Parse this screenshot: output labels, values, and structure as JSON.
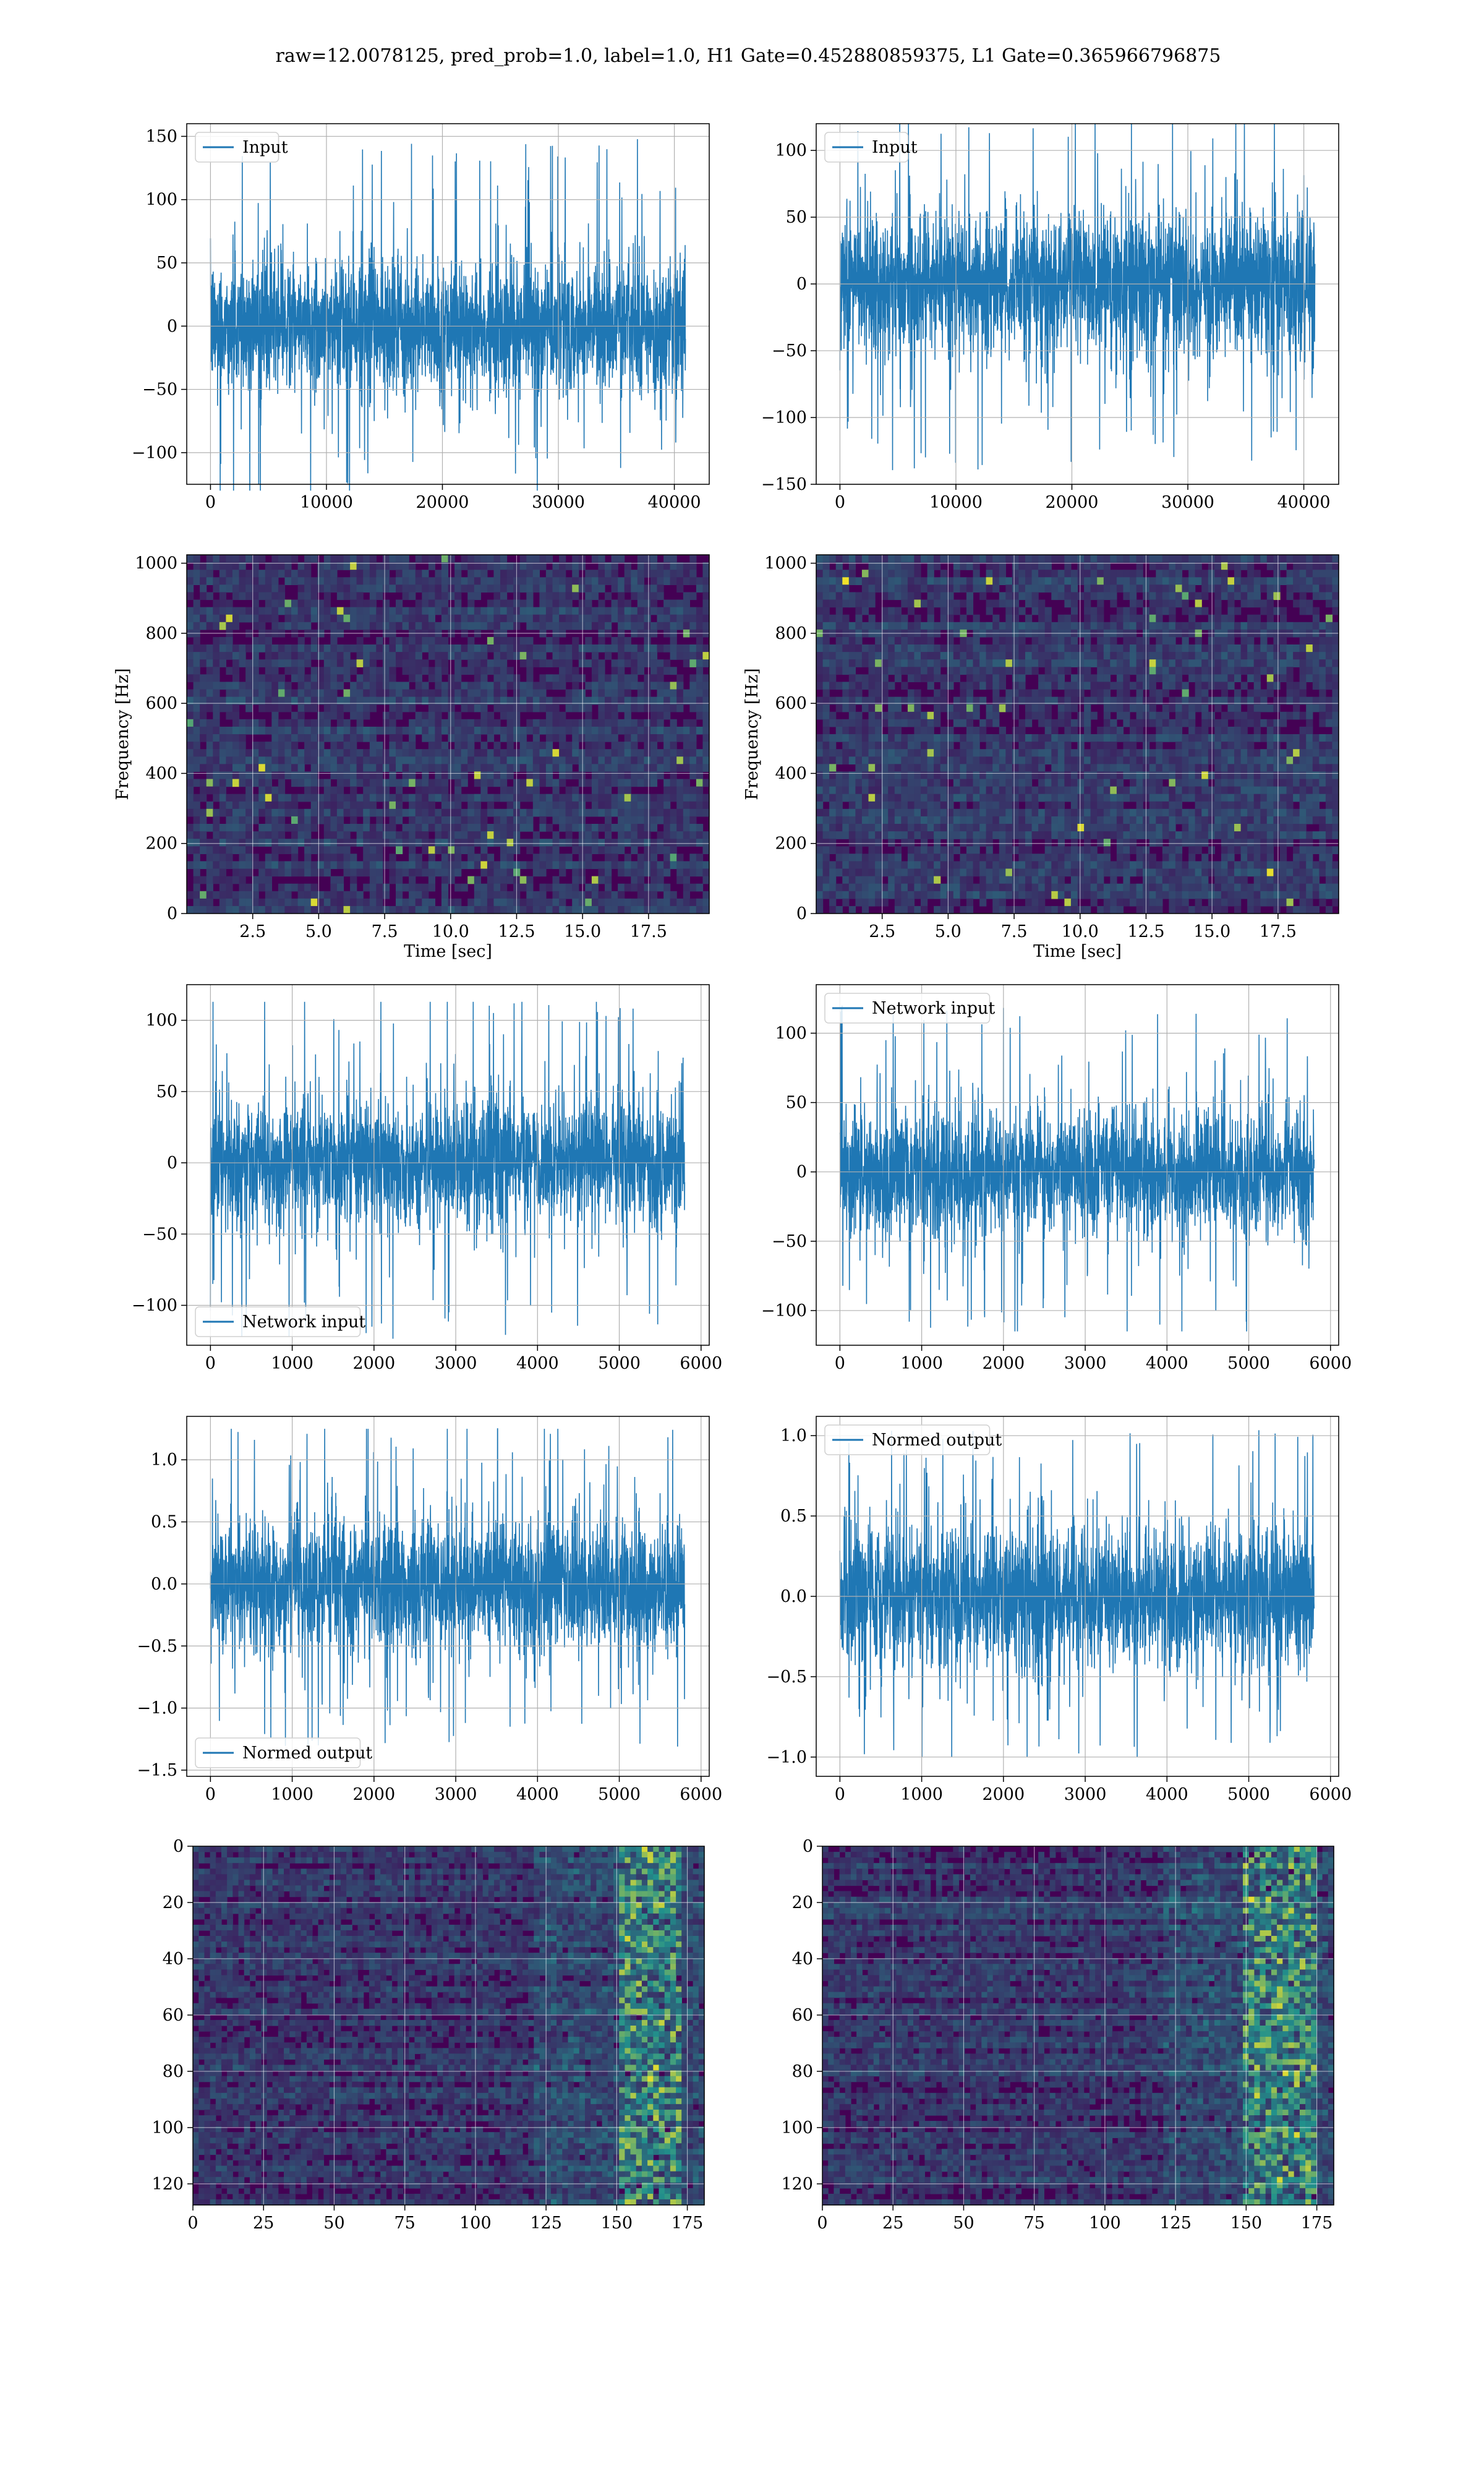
{
  "suptitle": "raw=12.0078125, pred_prob=1.0, label=1.0, H1 Gate=0.452880859375, L1 Gate=0.365966796875",
  "colors": {
    "series": "#1f77b4",
    "grid": "#b0b0b0",
    "spec_low": "#440154",
    "spec_mid": "#21918c",
    "spec_high": "#fde725"
  },
  "chart_data": [
    {
      "id": "p0",
      "type": "line",
      "series": [
        {
          "name": "Input"
        }
      ],
      "legend": "upper-left",
      "xlim": [
        -2048,
        43008
      ],
      "ylim": [
        -125,
        160
      ],
      "xticks": [
        "0",
        "10000",
        "20000",
        "30000",
        "40000"
      ],
      "xtick_values": [
        0,
        10000,
        20000,
        30000,
        40000
      ],
      "yticks": [
        "150",
        "100",
        "50",
        "0",
        "−50",
        "−100"
      ],
      "ytick_values": [
        150,
        100,
        50,
        0,
        -50,
        -100
      ],
      "x_range": [
        0,
        40960
      ],
      "band": [
        -55,
        50
      ],
      "extreme": [
        -130,
        148
      ],
      "grid": true
    },
    {
      "id": "p1",
      "type": "line",
      "series": [
        {
          "name": "Input"
        }
      ],
      "legend": "upper-left",
      "xlim": [
        -2048,
        43008
      ],
      "ylim": [
        -150,
        120
      ],
      "xticks": [
        "0",
        "10000",
        "20000",
        "30000",
        "40000"
      ],
      "xtick_values": [
        0,
        10000,
        20000,
        30000,
        40000
      ],
      "yticks": [
        "100",
        "50",
        "0",
        "−50",
        "−100",
        "−150"
      ],
      "ytick_values": [
        100,
        50,
        0,
        -50,
        -100,
        -150
      ],
      "x_range": [
        0,
        40960
      ],
      "band": [
        -55,
        55
      ],
      "extreme": [
        -140,
        120
      ],
      "grid": true
    },
    {
      "id": "p2",
      "type": "heatmap",
      "xlabel": "Time [sec]",
      "ylabel": "Frequency [Hz]",
      "xlim": [
        0,
        19.8
      ],
      "ylim": [
        0,
        1024
      ],
      "xticks": [
        "2.5",
        "5.0",
        "7.5",
        "10.0",
        "12.5",
        "15.0",
        "17.5"
      ],
      "xtick_values": [
        2.5,
        5,
        7.5,
        10,
        12.5,
        15,
        17.5
      ],
      "yticks": [
        "0",
        "200",
        "400",
        "600",
        "800",
        "1000"
      ],
      "ytick_values": [
        0,
        200,
        400,
        600,
        800,
        1000
      ],
      "grid": true
    },
    {
      "id": "p3",
      "type": "heatmap",
      "xlabel": "Time [sec]",
      "ylabel": "Frequency [Hz]",
      "xlim": [
        0,
        19.8
      ],
      "ylim": [
        0,
        1024
      ],
      "xticks": [
        "2.5",
        "5.0",
        "7.5",
        "10.0",
        "12.5",
        "15.0",
        "17.5"
      ],
      "xtick_values": [
        2.5,
        5,
        7.5,
        10,
        12.5,
        15,
        17.5
      ],
      "yticks": [
        "0",
        "200",
        "400",
        "600",
        "800",
        "1000"
      ],
      "ytick_values": [
        0,
        200,
        400,
        600,
        800,
        1000
      ],
      "grid": true
    },
    {
      "id": "p4",
      "type": "line",
      "series": [
        {
          "name": "Network input"
        }
      ],
      "legend": "lower-left",
      "xlim": [
        -290,
        6100
      ],
      "ylim": [
        -128,
        125
      ],
      "xticks": [
        "0",
        "1000",
        "2000",
        "3000",
        "4000",
        "5000",
        "6000"
      ],
      "xtick_values": [
        0,
        1000,
        2000,
        3000,
        4000,
        5000,
        6000
      ],
      "yticks": [
        "100",
        "50",
        "0",
        "−50",
        "−100"
      ],
      "ytick_values": [
        100,
        50,
        0,
        -50,
        -100
      ],
      "x_range": [
        0,
        5800
      ],
      "band": [
        -45,
        45
      ],
      "extreme": [
        -125,
        113
      ],
      "grid": true
    },
    {
      "id": "p5",
      "type": "line",
      "series": [
        {
          "name": "Network input"
        }
      ],
      "legend": "upper-left",
      "xlim": [
        -290,
        6100
      ],
      "ylim": [
        -125,
        135
      ],
      "xticks": [
        "0",
        "1000",
        "2000",
        "3000",
        "4000",
        "5000",
        "6000"
      ],
      "xtick_values": [
        0,
        1000,
        2000,
        3000,
        4000,
        5000,
        6000
      ],
      "yticks": [
        "100",
        "50",
        "0",
        "−50",
        "−100"
      ],
      "ytick_values": [
        100,
        50,
        0,
        -50,
        -100
      ],
      "x_range": [
        0,
        5800
      ],
      "band": [
        -45,
        45
      ],
      "extreme": [
        -115,
        120
      ],
      "grid": true
    },
    {
      "id": "p6",
      "type": "line",
      "series": [
        {
          "name": "Normed output"
        }
      ],
      "legend": "lower-left",
      "xlim": [
        -290,
        6100
      ],
      "ylim": [
        -1.55,
        1.35
      ],
      "xticks": [
        "0",
        "1000",
        "2000",
        "3000",
        "4000",
        "5000",
        "6000"
      ],
      "xtick_values": [
        0,
        1000,
        2000,
        3000,
        4000,
        5000,
        6000
      ],
      "yticks": [
        "1.0",
        "0.5",
        "0.0",
        "−0.5",
        "−1.0",
        "−1.5"
      ],
      "ytick_values": [
        1,
        0.5,
        0,
        -0.5,
        -1,
        -1.5
      ],
      "x_range": [
        0,
        5800
      ],
      "band": [
        -0.55,
        0.55
      ],
      "extreme": [
        -1.4,
        1.25
      ],
      "grid": true
    },
    {
      "id": "p7",
      "type": "line",
      "series": [
        {
          "name": "Normed output"
        }
      ],
      "legend": "upper-left",
      "xlim": [
        -290,
        6100
      ],
      "ylim": [
        -1.12,
        1.12
      ],
      "xticks": [
        "0",
        "1000",
        "2000",
        "3000",
        "4000",
        "5000",
        "6000"
      ],
      "xtick_values": [
        0,
        1000,
        2000,
        3000,
        4000,
        5000,
        6000
      ],
      "yticks": [
        "1.0",
        "0.5",
        "0.0",
        "−0.5",
        "−1.0"
      ],
      "ytick_values": [
        1,
        0.5,
        0,
        -0.5,
        -1
      ],
      "x_range": [
        0,
        5800
      ],
      "band": [
        -0.45,
        0.45
      ],
      "extreme": [
        -1.0,
        1.05
      ],
      "grid": true
    },
    {
      "id": "p8",
      "type": "heatmap",
      "xlim": [
        0,
        181
      ],
      "ylim": [
        127.5,
        0
      ],
      "xticks": [
        "0",
        "25",
        "50",
        "75",
        "100",
        "125",
        "150",
        "175"
      ],
      "xtick_values": [
        0,
        25,
        50,
        75,
        100,
        125,
        150,
        175
      ],
      "yticks": [
        "0",
        "20",
        "40",
        "60",
        "80",
        "100",
        "120"
      ],
      "ytick_values": [
        0,
        20,
        40,
        60,
        80,
        100,
        120
      ],
      "hot_band": [
        150,
        172
      ],
      "grid": true
    },
    {
      "id": "p9",
      "type": "heatmap",
      "xlim": [
        0,
        181
      ],
      "ylim": [
        127.5,
        0
      ],
      "xticks": [
        "0",
        "25",
        "50",
        "75",
        "100",
        "125",
        "150",
        "175"
      ],
      "xtick_values": [
        0,
        25,
        50,
        75,
        100,
        125,
        150,
        175
      ],
      "yticks": [
        "0",
        "20",
        "40",
        "60",
        "80",
        "100",
        "120"
      ],
      "ytick_values": [
        0,
        20,
        40,
        60,
        80,
        100,
        120
      ],
      "hot_band": [
        148,
        175
      ],
      "grid": true
    }
  ]
}
